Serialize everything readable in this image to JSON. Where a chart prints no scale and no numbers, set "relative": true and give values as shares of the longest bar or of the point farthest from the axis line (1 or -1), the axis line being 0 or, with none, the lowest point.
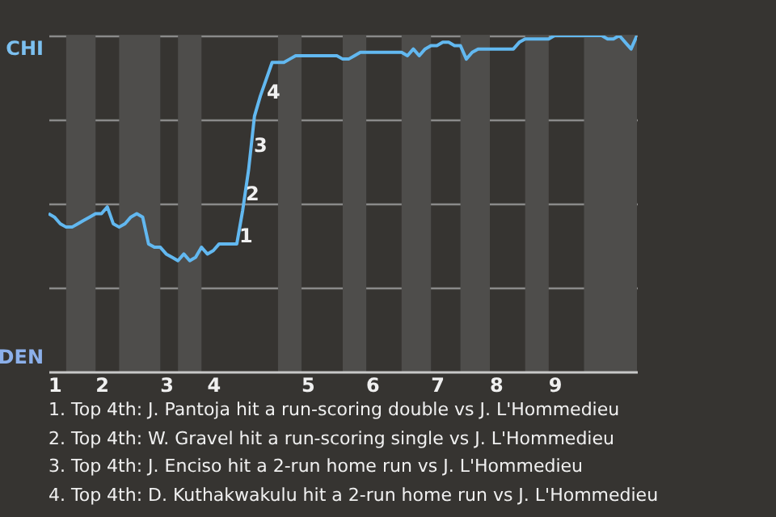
{
  "chart_data": {
    "type": "line",
    "relative": true,
    "categories": [
      null,
      "1",
      null,
      null,
      null,
      null,
      null,
      null,
      null,
      "2",
      null,
      null,
      null,
      null,
      null,
      null,
      null,
      null,
      null,
      null,
      "3",
      null,
      null,
      null,
      null,
      null,
      null,
      null,
      "4",
      null,
      null,
      null,
      null,
      null,
      null,
      null,
      null,
      null,
      null,
      null,
      null,
      null,
      null,
      null,
      "5",
      null,
      null,
      null,
      null,
      null,
      null,
      null,
      null,
      null,
      null,
      "6",
      null,
      null,
      null,
      null,
      null,
      null,
      null,
      null,
      null,
      null,
      "7",
      null,
      null,
      null,
      null,
      null,
      null,
      null,
      null,
      null,
      "8",
      null,
      null,
      null,
      null,
      null,
      null,
      null,
      null,
      null,
      "9",
      null,
      null,
      null,
      null,
      null,
      null,
      null,
      null,
      null,
      null,
      null,
      null,
      null,
      null
    ],
    "series": [
      {
        "color": "#62b8f0",
        "values": [
          0.47,
          0.46,
          0.44,
          0.43,
          0.43,
          0.44,
          0.45,
          0.46,
          0.47,
          0.47,
          0.49,
          0.44,
          0.43,
          0.44,
          0.46,
          0.47,
          0.46,
          0.38,
          0.37,
          0.37,
          0.35,
          0.34,
          0.33,
          0.35,
          0.33,
          0.34,
          0.37,
          0.35,
          0.36,
          0.38,
          0.38,
          0.38,
          0.38,
          0.48,
          0.6,
          0.76,
          0.82,
          0.87,
          0.92,
          0.92,
          0.92,
          0.93,
          0.94,
          0.94,
          0.94,
          0.94,
          0.94,
          0.94,
          0.94,
          0.94,
          0.93,
          0.93,
          0.94,
          0.95,
          0.95,
          0.95,
          0.95,
          0.95,
          0.95,
          0.95,
          0.95,
          0.94,
          0.96,
          0.94,
          0.96,
          0.97,
          0.97,
          0.98,
          0.98,
          0.97,
          0.97,
          0.93,
          0.95,
          0.96,
          0.96,
          0.96,
          0.96,
          0.96,
          0.96,
          0.96,
          0.98,
          0.99,
          0.99,
          0.99,
          0.99,
          0.99,
          1,
          1,
          1,
          1,
          1,
          1,
          1,
          1,
          1,
          0.99,
          0.99,
          1,
          0.98,
          0.96,
          1
        ]
      }
    ],
    "grid": "y",
    "annotations": [
      "CHI",
      "DEN",
      "1",
      "2",
      "3",
      "4",
      "1. Top 4th: J. Pantoja hit a run-scoring double vs J. L'Hommedieu",
      "2. Top 4th: W. Gravel hit a run-scoring single vs J. L'Hommedieu",
      "3. Top 4th: J. Enciso hit a 2-run home run vs J. L'Hommedieu",
      "4. Top 4th: D. Kuthakwakulu hit a 2-run home run vs J. L'Hommedieu"
    ]
  }
}
